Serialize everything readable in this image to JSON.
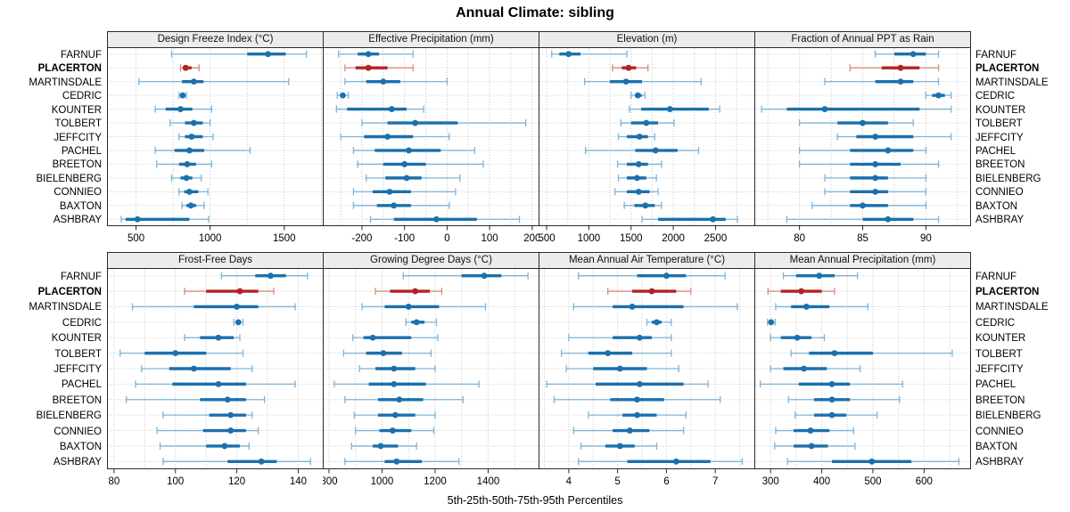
{
  "title": "Annual Climate: sibling",
  "footer_caption": "5th-25th-50th-75th-95th Percentiles",
  "stations": [
    "FARNUF",
    "PLACERTON",
    "MARTINSDALE",
    "CEDRIC",
    "KOUNTER",
    "TOLBERT",
    "JEFFCITY",
    "PACHEL",
    "BREETON",
    "BIELENBERG",
    "CONNIEO",
    "BAXTON",
    "ASHBRAY"
  ],
  "highlight_station": "PLACERTON",
  "colors": {
    "blue": "#1b70ad",
    "blue_light": "#7db3d8",
    "red": "#b22222",
    "red_light": "#d98b82",
    "grid": "#c8c8c8",
    "frame": "#2b2b2b",
    "strip_bg": "#ececec"
  },
  "chart_data": [
    {
      "type": "dotplot",
      "title": "Design Freeze Index (°C)",
      "xlim": [
        310,
        1760
      ],
      "ticks": [
        500,
        1000,
        1500
      ],
      "grid": [
        500,
        750,
        1000,
        1250,
        1500,
        1750
      ],
      "percentiles": [
        5,
        25,
        50,
        75,
        95
      ],
      "values": [
        [
          740,
          1250,
          1390,
          1510,
          1650
        ],
        [
          800,
          815,
          835,
          875,
          925
        ],
        [
          520,
          810,
          890,
          955,
          1530
        ],
        [
          790,
          805,
          815,
          825,
          840
        ],
        [
          630,
          700,
          800,
          880,
          1010
        ],
        [
          730,
          830,
          890,
          950,
          1000
        ],
        [
          790,
          830,
          875,
          950,
          1020
        ],
        [
          630,
          760,
          860,
          960,
          1270
        ],
        [
          640,
          790,
          845,
          905,
          1010
        ],
        [
          740,
          800,
          840,
          880,
          940
        ],
        [
          790,
          825,
          860,
          920,
          985
        ],
        [
          810,
          840,
          870,
          905,
          960
        ],
        [
          400,
          430,
          510,
          860,
          990
        ]
      ]
    },
    {
      "type": "dotplot",
      "title": "Effective Precipitation (mm)",
      "xlim": [
        -290,
        215
      ],
      "ticks": [
        -200,
        -100,
        0,
        100,
        200
      ],
      "grid": [
        -250,
        -200,
        -150,
        -100,
        -50,
        0,
        50,
        100,
        150,
        200
      ],
      "percentiles": [
        5,
        25,
        50,
        75,
        95
      ],
      "values": [
        [
          -255,
          -210,
          -185,
          -160,
          -80
        ],
        [
          -240,
          -215,
          -185,
          -140,
          -80
        ],
        [
          -240,
          -190,
          -150,
          -110,
          0
        ],
        [
          -258,
          -250,
          -245,
          -240,
          -232
        ],
        [
          -260,
          -235,
          -130,
          -95,
          -55
        ],
        [
          -200,
          -140,
          -75,
          25,
          185
        ],
        [
          -250,
          -195,
          -140,
          -80,
          5
        ],
        [
          -220,
          -170,
          -90,
          -15,
          65
        ],
        [
          -210,
          -150,
          -100,
          -50,
          85
        ],
        [
          -190,
          -145,
          -95,
          -60,
          30
        ],
        [
          -220,
          -175,
          -135,
          -85,
          20
        ],
        [
          -220,
          -165,
          -125,
          -85,
          5
        ],
        [
          -180,
          -125,
          -25,
          70,
          170
        ]
      ]
    },
    {
      "type": "dotplot",
      "title": "Elevation (m)",
      "xlim": [
        415,
        2960
      ],
      "ticks": [
        500,
        1000,
        1500,
        2000,
        2500
      ],
      "grid": [
        500,
        750,
        1000,
        1250,
        1500,
        1750,
        2000,
        2250,
        2500,
        2750
      ],
      "percentiles": [
        5,
        25,
        50,
        75,
        95
      ],
      "values": [
        [
          560,
          650,
          760,
          900,
          1450
        ],
        [
          1280,
          1390,
          1470,
          1560,
          1700
        ],
        [
          950,
          1250,
          1440,
          1630,
          2330
        ],
        [
          1500,
          1545,
          1580,
          1625,
          1665
        ],
        [
          1480,
          1620,
          1960,
          2420,
          2550
        ],
        [
          1380,
          1500,
          1680,
          1820,
          2010
        ],
        [
          1350,
          1450,
          1600,
          1700,
          1780
        ],
        [
          960,
          1550,
          1790,
          2050,
          2300
        ],
        [
          1340,
          1450,
          1590,
          1700,
          1860
        ],
        [
          1350,
          1450,
          1570,
          1680,
          1800
        ],
        [
          1310,
          1450,
          1590,
          1720,
          1820
        ],
        [
          1420,
          1540,
          1670,
          1780,
          1860
        ],
        [
          1630,
          1820,
          2470,
          2620,
          2760
        ]
      ]
    },
    {
      "type": "dotplot",
      "title": "Fraction of Annual PPT as Rain",
      "xlim": [
        76.5,
        93.5
      ],
      "ticks": [
        80,
        85,
        90
      ],
      "grid": [
        77.5,
        80,
        82.5,
        85,
        87.5,
        90,
        92.5
      ],
      "percentiles": [
        5,
        25,
        50,
        75,
        95
      ],
      "values": [
        [
          86,
          87.5,
          89,
          90,
          91
        ],
        [
          84,
          86.5,
          88,
          89.5,
          91
        ],
        [
          82,
          86,
          88,
          89,
          91
        ],
        [
          90,
          90.5,
          91,
          91.5,
          92
        ],
        [
          77,
          79,
          82,
          89.5,
          92
        ],
        [
          80,
          83,
          85,
          87,
          89
        ],
        [
          83,
          84.5,
          86,
          89,
          92
        ],
        [
          80,
          84,
          87,
          89,
          90
        ],
        [
          80,
          84,
          86,
          88,
          91
        ],
        [
          82,
          84,
          86,
          87,
          90
        ],
        [
          82,
          84,
          86,
          87,
          90
        ],
        [
          81,
          84,
          85,
          87,
          90
        ],
        [
          79,
          85,
          87,
          89,
          91
        ]
      ]
    },
    {
      "type": "dotplot",
      "title": "Frost-Free Days",
      "xlim": [
        78,
        148
      ],
      "ticks": [
        80,
        100,
        120,
        140
      ],
      "grid": [
        80,
        90,
        100,
        110,
        120,
        130,
        140
      ],
      "percentiles": [
        5,
        25,
        50,
        75,
        95
      ],
      "values": [
        [
          115,
          126,
          131,
          136,
          143
        ],
        [
          103,
          110,
          121,
          127,
          132
        ],
        [
          86,
          106,
          120,
          127,
          139
        ],
        [
          119,
          120,
          120.5,
          121,
          122
        ],
        [
          103,
          108,
          114,
          119,
          121
        ],
        [
          82,
          90,
          100,
          110,
          122
        ],
        [
          89,
          98,
          106,
          118,
          125
        ],
        [
          87,
          99,
          114,
          123,
          139
        ],
        [
          84,
          108,
          117,
          123,
          129
        ],
        [
          96,
          111,
          118,
          123,
          125
        ],
        [
          94,
          109,
          118,
          123,
          127
        ],
        [
          95,
          110,
          116,
          121,
          124
        ],
        [
          96,
          117,
          128,
          133,
          144
        ]
      ]
    },
    {
      "type": "dotplot",
      "title": "Growing Degree Days (°C)",
      "xlim": [
        780,
        1590
      ],
      "ticks": [
        800,
        1000,
        1200,
        1400
      ],
      "grid": [
        800,
        900,
        1000,
        1100,
        1200,
        1300,
        1400,
        1500
      ],
      "percentiles": [
        5,
        25,
        50,
        75,
        95
      ],
      "values": [
        [
          1080,
          1300,
          1385,
          1450,
          1550
        ],
        [
          975,
          1030,
          1125,
          1180,
          1225
        ],
        [
          925,
          1010,
          1100,
          1215,
          1390
        ],
        [
          1090,
          1110,
          1130,
          1160,
          1205
        ],
        [
          890,
          930,
          965,
          1110,
          1210
        ],
        [
          855,
          940,
          1005,
          1075,
          1185
        ],
        [
          915,
          975,
          1045,
          1125,
          1200
        ],
        [
          820,
          950,
          1045,
          1165,
          1365
        ],
        [
          860,
          985,
          1065,
          1155,
          1305
        ],
        [
          895,
          985,
          1050,
          1125,
          1200
        ],
        [
          900,
          990,
          1040,
          1110,
          1195
        ],
        [
          885,
          965,
          995,
          1060,
          1130
        ],
        [
          860,
          1010,
          1055,
          1150,
          1290
        ]
      ]
    },
    {
      "type": "dotplot",
      "title": "Mean Annual Air Temperature (°C)",
      "xlim": [
        3.4,
        7.8
      ],
      "ticks": [
        4,
        5,
        6,
        7
      ],
      "grid": [
        3.5,
        4,
        4.5,
        5,
        5.5,
        6,
        6.5,
        7,
        7.5
      ],
      "percentiles": [
        5,
        25,
        50,
        75,
        95
      ],
      "values": [
        [
          4.2,
          5.4,
          6.0,
          6.4,
          7.2
        ],
        [
          4.8,
          5.3,
          5.7,
          6.2,
          6.5
        ],
        [
          4.1,
          4.9,
          5.3,
          6.35,
          7.45
        ],
        [
          5.6,
          5.7,
          5.8,
          5.9,
          6.1
        ],
        [
          4.0,
          4.9,
          5.45,
          5.7,
          6.1
        ],
        [
          3.85,
          4.4,
          4.8,
          5.3,
          6.1
        ],
        [
          3.95,
          4.5,
          5.05,
          5.6,
          6.25
        ],
        [
          3.55,
          4.55,
          5.45,
          6.35,
          6.85
        ],
        [
          3.7,
          4.85,
          5.4,
          5.95,
          7.1
        ],
        [
          4.4,
          5.1,
          5.4,
          5.8,
          6.4
        ],
        [
          4.1,
          4.9,
          5.25,
          5.65,
          6.35
        ],
        [
          4.25,
          4.75,
          5.05,
          5.35,
          5.8
        ],
        [
          4.2,
          5.2,
          6.2,
          6.9,
          7.55
        ]
      ]
    },
    {
      "type": "dotplot",
      "title": "Mean Annual Precipitation (mm)",
      "xlim": [
        270,
        690
      ],
      "ticks": [
        300,
        400,
        500,
        600
      ],
      "grid": [
        300,
        350,
        400,
        450,
        500,
        550,
        600,
        650
      ],
      "percentiles": [
        5,
        25,
        50,
        75,
        95
      ],
      "values": [
        [
          325,
          350,
          395,
          425,
          470
        ],
        [
          295,
          320,
          360,
          400,
          425
        ],
        [
          310,
          340,
          370,
          415,
          490
        ],
        [
          294,
          298,
          301,
          305,
          309
        ],
        [
          300,
          320,
          352,
          380,
          405
        ],
        [
          340,
          375,
          425,
          500,
          655
        ],
        [
          300,
          325,
          365,
          410,
          475
        ],
        [
          280,
          355,
          420,
          455,
          558
        ],
        [
          335,
          385,
          420,
          455,
          552
        ],
        [
          348,
          385,
          420,
          448,
          508
        ],
        [
          310,
          345,
          378,
          415,
          462
        ],
        [
          308,
          345,
          380,
          412,
          465
        ],
        [
          333,
          420,
          498,
          575,
          668
        ]
      ]
    }
  ]
}
